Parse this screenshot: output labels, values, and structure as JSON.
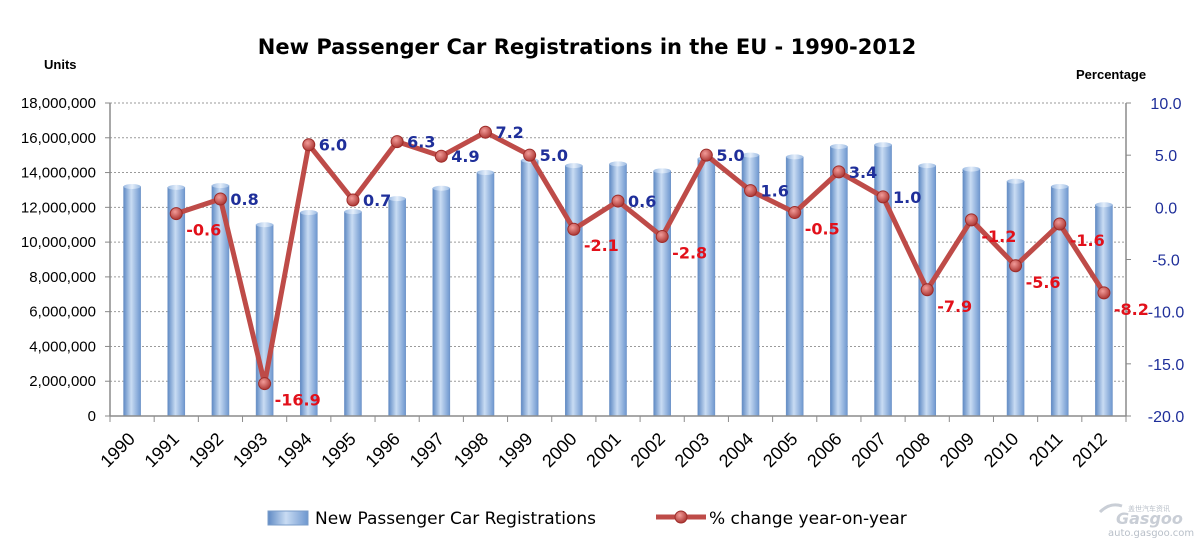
{
  "chart_data": {
    "type": "bar",
    "title": "New Passenger Car Registrations in the EU - 1990-2012",
    "y_left_label": "Units",
    "y_right_label": "Percentage",
    "categories": [
      "1990",
      "1991",
      "1992",
      "1993",
      "1994",
      "1995",
      "1996",
      "1997",
      "1998",
      "1999",
      "2000",
      "2001",
      "2002",
      "2003",
      "2004",
      "2005",
      "2006",
      "2007",
      "2008",
      "2009",
      "2010",
      "2011",
      "2012"
    ],
    "series": [
      {
        "name": "New Passenger Car Registrations",
        "type": "bar",
        "axis": "left",
        "color": "#8db4e2",
        "values": [
          13200000,
          13150000,
          13250000,
          11000000,
          11700000,
          11750000,
          12500000,
          13100000,
          14000000,
          14700000,
          14400000,
          14500000,
          14100000,
          14800000,
          15000000,
          14900000,
          15500000,
          15600000,
          14400000,
          14200000,
          13500000,
          13200000,
          12150000
        ]
      },
      {
        "name": "% change year-on-year",
        "type": "line",
        "axis": "right",
        "color": "#be4b48",
        "values": [
          null,
          -0.6,
          0.8,
          -16.9,
          6.0,
          0.7,
          6.3,
          4.9,
          7.2,
          5.0,
          -2.1,
          0.6,
          -2.8,
          5.0,
          1.6,
          -0.5,
          3.4,
          1.0,
          -7.9,
          -1.2,
          -5.6,
          -1.6,
          -8.2
        ],
        "labels": [
          "",
          "-0.6",
          "0.8",
          "-16.9",
          "6.0",
          "0.7",
          "6.3",
          "4.9",
          "7.2",
          "5.0",
          "-2.1",
          "0.6",
          "-2.8",
          "5.0",
          "1.6",
          "-0.5",
          "3.4",
          "1.0",
          "-7.9",
          "-1.2",
          "-5.6",
          "-1.6",
          "-8.2"
        ]
      }
    ],
    "y_left_ticks": [
      "0",
      "2,000,000",
      "4,000,000",
      "6,000,000",
      "8,000,000",
      "10,000,000",
      "12,000,000",
      "14,000,000",
      "16,000,000",
      "18,000,000"
    ],
    "y_right_ticks": [
      "-20.0",
      "-15.0",
      "-10.0",
      "-5.0",
      "0.0",
      "5.0",
      "10.0"
    ],
    "ylim_left": [
      0,
      18000000
    ],
    "ylim_right": [
      -20,
      10
    ],
    "grid": true,
    "legend_position": "bottom",
    "label_colors": {
      "positive": "#1f2f9a",
      "negative": "#e2101a"
    }
  },
  "watermark": {
    "logo_text": "Gasgoo",
    "cn_text": "盖世汽车资讯",
    "url": "auto.gasgoo.com"
  }
}
